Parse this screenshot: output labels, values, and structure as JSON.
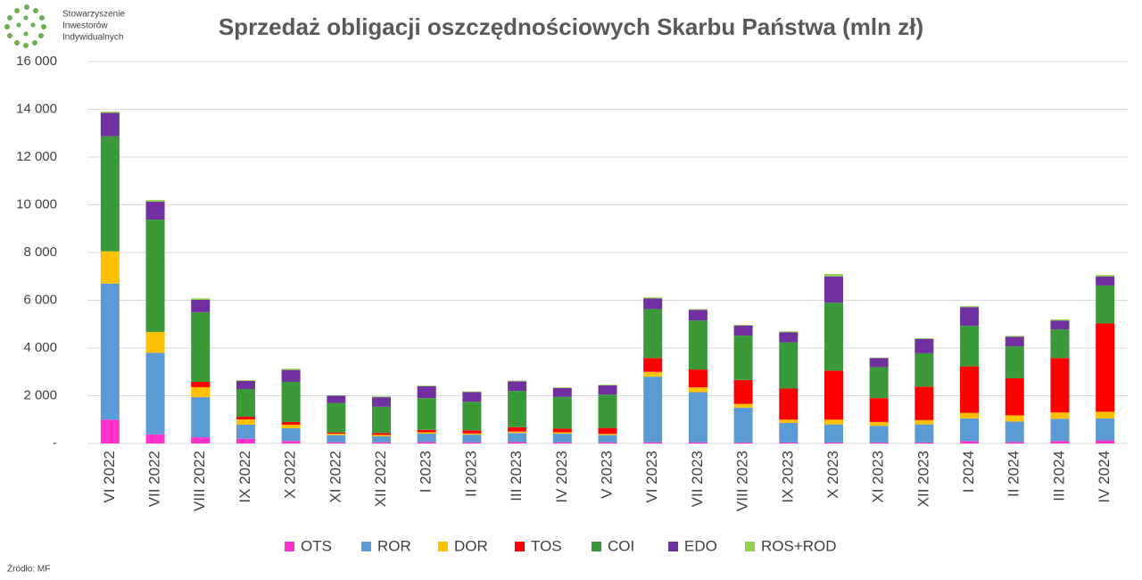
{
  "logo": {
    "lines": [
      "Stowarzyszenie",
      "Inwestorów",
      "Indywidualnych"
    ]
  },
  "source": "Źródło: MF",
  "chart_data": {
    "type": "stacked_bar",
    "title": "Sprzedaż obligacji oszczędnościowych Skarbu Państwa (mln zł)",
    "categories": [
      "VI 2022",
      "VII 2022",
      "VIII 2022",
      "IX 2022",
      "X 2022",
      "XI 2022",
      "XII 2022",
      "I 2023",
      "II 2023",
      "III 2023",
      "IV 2023",
      "V 2023",
      "VI 2023",
      "VII 2023",
      "VIII 2023",
      "IX 2023",
      "X 2023",
      "XI 2023",
      "XII 2023",
      "I 2024",
      "II 2024",
      "III 2024",
      "IV 2024"
    ],
    "series": [
      {
        "name": "OTS",
        "color": "#ff33cc",
        "values": [
          1000,
          380,
          260,
          200,
          100,
          50,
          50,
          60,
          50,
          60,
          50,
          50,
          50,
          50,
          40,
          40,
          40,
          40,
          40,
          100,
          60,
          100,
          130
        ]
      },
      {
        "name": "ROR",
        "color": "#5b9bd5",
        "values": [
          5700,
          3420,
          1680,
          590,
          540,
          300,
          250,
          350,
          320,
          380,
          360,
          300,
          2750,
          2100,
          1460,
          820,
          760,
          700,
          760,
          950,
          860,
          930,
          920
        ]
      },
      {
        "name": "DOR",
        "color": "#ffc000",
        "values": [
          1350,
          870,
          420,
          220,
          150,
          60,
          60,
          60,
          50,
          60,
          60,
          50,
          200,
          200,
          160,
          140,
          200,
          160,
          180,
          230,
          260,
          270,
          280
        ]
      },
      {
        "name": "TOS",
        "color": "#ff0000",
        "values": [
          0,
          0,
          220,
          110,
          110,
          50,
          80,
          100,
          130,
          180,
          150,
          250,
          580,
          750,
          1000,
          1300,
          2050,
          1000,
          1400,
          1950,
          1550,
          2280,
          3700
        ]
      },
      {
        "name": "COI",
        "color": "#3a9a3a",
        "values": [
          4820,
          4710,
          2920,
          1160,
          1680,
          1240,
          1100,
          1330,
          1200,
          1520,
          1330,
          1400,
          2050,
          2050,
          1860,
          1940,
          2850,
          1300,
          1400,
          1700,
          1340,
          1200,
          1590
        ]
      },
      {
        "name": "EDO",
        "color": "#7030a0",
        "values": [
          980,
          750,
          520,
          340,
          500,
          300,
          400,
          500,
          400,
          400,
          370,
          380,
          450,
          450,
          420,
          420,
          1100,
          380,
          600,
          780,
          400,
          370,
          380
        ]
      },
      {
        "name": "ROS+ROD",
        "color": "#92d050",
        "values": [
          50,
          70,
          60,
          30,
          50,
          20,
          30,
          30,
          30,
          30,
          30,
          30,
          40,
          30,
          30,
          40,
          100,
          20,
          30,
          40,
          40,
          50,
          60
        ]
      }
    ],
    "ylim": [
      0,
      16000
    ],
    "yticks": [
      {
        "value": 0,
        "label": "-"
      },
      {
        "value": 2000,
        "label": "2 000"
      },
      {
        "value": 4000,
        "label": "4 000"
      },
      {
        "value": 6000,
        "label": "6 000"
      },
      {
        "value": 8000,
        "label": "8 000"
      },
      {
        "value": 10000,
        "label": "10 000"
      },
      {
        "value": 12000,
        "label": "12 000"
      },
      {
        "value": 14000,
        "label": "14 000"
      },
      {
        "value": 16000,
        "label": "16 000"
      }
    ],
    "grid": true,
    "legend": "bottom"
  }
}
